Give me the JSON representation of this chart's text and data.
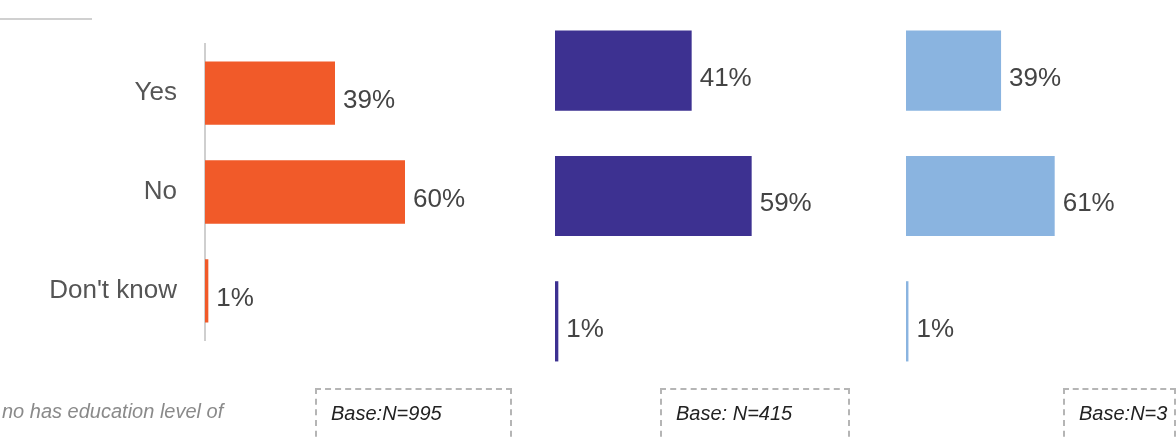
{
  "chart_data": [
    {
      "type": "bar",
      "orientation": "horizontal",
      "categories": [
        "Yes",
        "No",
        "Don't know"
      ],
      "values": [
        39,
        60,
        1
      ],
      "color": "#f15a29",
      "value_labels": [
        "39%",
        "60%",
        "1%"
      ],
      "tick_labels": "y",
      "annotations": [
        "no has education level of",
        "Base:N=995"
      ]
    },
    {
      "type": "bar",
      "orientation": "horizontal",
      "categories": [
        null,
        null,
        null
      ],
      "values": [
        41,
        59,
        1
      ],
      "color": "#3d3191",
      "value_labels": [
        "41%",
        "59%",
        "1%"
      ],
      "tick_labels": false,
      "annotations": [
        "Base: N=415"
      ]
    },
    {
      "type": "bar",
      "orientation": "horizontal",
      "categories": [
        null,
        null,
        null
      ],
      "values": [
        39,
        61,
        1
      ],
      "color": "#8ab4e0",
      "value_labels": [
        "39%",
        "61%",
        "1%"
      ],
      "tick_labels": false,
      "annotations": [
        "Base:N=3"
      ]
    }
  ]
}
